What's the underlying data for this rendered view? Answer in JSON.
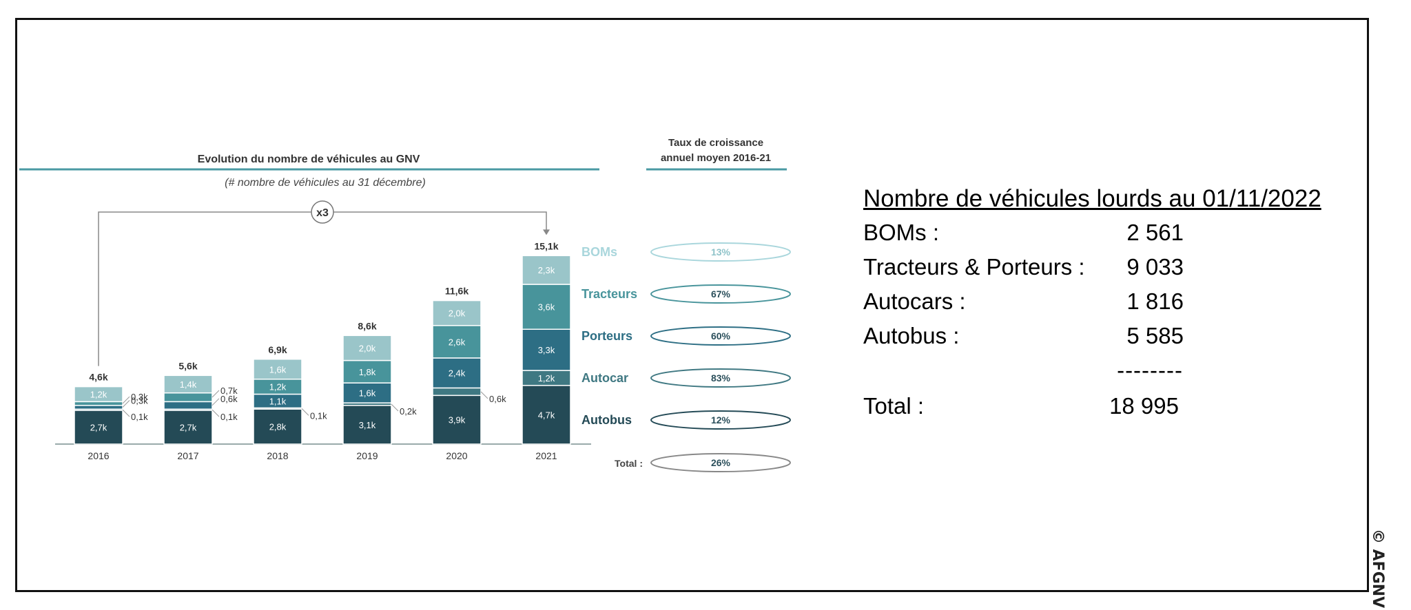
{
  "chart_data": {
    "type": "bar",
    "title": "Evolution du nombre de véhicules au GNV",
    "subtitle": "(# nombre de véhicules au 31 décembre)",
    "categories": [
      "2016",
      "2017",
      "2018",
      "2019",
      "2020",
      "2021"
    ],
    "totals": [
      "4,6k",
      "5,6k",
      "6,9k",
      "8,6k",
      "11,6k",
      "15,1k"
    ],
    "series": [
      {
        "name": "Autobus",
        "values": [
          2.7,
          2.7,
          2.8,
          3.1,
          3.9,
          4.7
        ],
        "labels": [
          "2,7k",
          "2,7k",
          "2,8k",
          "3,1k",
          "3,9k",
          "4,7k"
        ],
        "color": "#244a56"
      },
      {
        "name": "Autocar",
        "values": [
          0.1,
          0.1,
          0.1,
          0.2,
          0.6,
          1.2
        ],
        "labels": [
          "0,1k",
          "0,1k",
          "0,1k",
          "0,2k",
          "0,6k",
          "1,2k"
        ],
        "color": "#3f7882"
      },
      {
        "name": "Porteurs",
        "values": [
          0.3,
          0.6,
          1.1,
          1.6,
          2.4,
          3.3
        ],
        "labels": [
          "0,3k",
          "0,6k",
          "1,1k",
          "1,6k",
          "2,4k",
          "3,3k"
        ],
        "color": "#2d6e84"
      },
      {
        "name": "Tracteurs",
        "values": [
          0.3,
          0.7,
          1.2,
          1.8,
          2.6,
          3.6
        ],
        "labels": [
          "0,3k",
          "0,7k",
          "1,2k",
          "1,8k",
          "2,6k",
          "3,6k"
        ],
        "color": "#48949b"
      },
      {
        "name": "BOMs",
        "values": [
          1.2,
          1.4,
          1.6,
          2.0,
          2.0,
          2.3
        ],
        "labels": [
          "1,2k",
          "1,4k",
          "1,6k",
          "2,0k",
          "2,0k",
          "2,3k"
        ],
        "color": "#9ac5c9"
      }
    ],
    "growth_title_line1": "Taux de croissance",
    "growth_title_line2": "annuel moyen 2016-21",
    "growth": [
      {
        "label": "BOMs",
        "rate": "13%",
        "color": "#a9d6dc"
      },
      {
        "label": "Tracteurs",
        "rate": "67%",
        "color": "#48949b"
      },
      {
        "label": "Porteurs",
        "rate": "60%",
        "color": "#2d6e84"
      },
      {
        "label": "Autocar",
        "rate": "83%",
        "color": "#3f7882"
      },
      {
        "label": "Autobus",
        "rate": "12%",
        "color": "#244a56"
      },
      {
        "label": "Total :",
        "rate": "26%",
        "color": "#888888"
      }
    ],
    "multiplier": "x3",
    "ylim": [
      0,
      16
    ],
    "legend": "right"
  },
  "summary": {
    "heading": "Nombre de véhicules lourds au 01/11/2022",
    "rows": [
      {
        "label": "BOMs :",
        "value": "2 561"
      },
      {
        "label": "Tracteurs & Porteurs :",
        "value": "9 033"
      },
      {
        "label": "Autocars :",
        "value": "1 816"
      },
      {
        "label": "Autobus :",
        "value": "5 585"
      }
    ],
    "separator": "--------",
    "total_label": "Total :",
    "total_value": "18 995"
  },
  "credit": "© AFGNV"
}
